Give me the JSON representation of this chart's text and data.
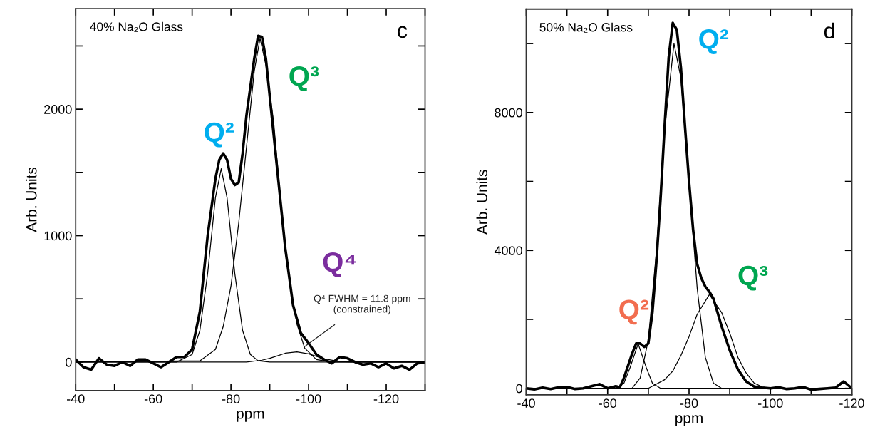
{
  "chart_data": [
    {
      "type": "line",
      "title": "40% Na₂O Glass",
      "xlabel": "ppm",
      "ylabel": "Arb. Units",
      "xlim": [
        -40,
        -130
      ],
      "ylim": [
        -225,
        2795
      ],
      "xticks": [
        -40,
        {
          "value": -50,
          "label": null
        },
        -60,
        {
          "value": -70,
          "label": null
        },
        -80,
        {
          "value": -90,
          "label": null
        },
        -100,
        {
          "value": -110,
          "label": null
        },
        -120,
        {
          "value": -130,
          "label": null
        }
      ],
      "yticks": [
        0,
        {
          "value": 500,
          "label": null
        },
        1000,
        {
          "value": 1500,
          "label": null
        },
        2000,
        {
          "value": 2500,
          "label": null
        }
      ],
      "grid": false,
      "legend": false,
      "marker": "none",
      "series": [
        {
          "color": "#000000",
          "x": [
            -40,
            -42,
            -44,
            -46,
            -48,
            -50,
            -52,
            -54,
            -56,
            -58,
            -60,
            -62,
            -64,
            -66,
            -68,
            -70,
            -72,
            -74,
            -76,
            -77,
            -78,
            -79,
            -80,
            -81,
            -82,
            -83,
            -84,
            -86,
            -87,
            -88,
            -89,
            -90,
            -92,
            -94,
            -96,
            -98,
            -100,
            -102,
            -104,
            -106,
            -108,
            -110,
            -112,
            -114,
            -116,
            -118,
            -120,
            -122,
            -124,
            -126,
            -128,
            -130
          ],
          "values": [
            20,
            -40,
            -60,
            30,
            -20,
            -30,
            0,
            -30,
            20,
            20,
            -10,
            -40,
            0,
            40,
            40,
            100,
            400,
            1000,
            1450,
            1600,
            1650,
            1600,
            1450,
            1400,
            1420,
            1650,
            1950,
            2400,
            2580,
            2570,
            2400,
            2100,
            1500,
            900,
            450,
            230,
            150,
            60,
            20,
            -10,
            40,
            30,
            0,
            -20,
            -10,
            -40,
            -10,
            -50,
            -30,
            -60,
            -10,
            0
          ]
        },
        {
          "color": "#000000",
          "x": [
            -40,
            -66,
            -70,
            -72,
            -74,
            -76,
            -77.5,
            -79,
            -81,
            -83,
            -85,
            -87,
            -90,
            -130
          ],
          "values": [
            0,
            0,
            60,
            250,
            700,
            1300,
            1530,
            1300,
            700,
            250,
            60,
            10,
            0,
            0
          ]
        },
        {
          "color": "#000000",
          "x": [
            -40,
            -72,
            -76,
            -78,
            -80,
            -82,
            -84,
            -86,
            -87.5,
            -89,
            -91,
            -93,
            -95,
            -97,
            -99,
            -102,
            -106,
            -130
          ],
          "values": [
            0,
            10,
            100,
            280,
            600,
            1100,
            1700,
            2300,
            2560,
            2350,
            1900,
            1200,
            650,
            300,
            110,
            20,
            0,
            0
          ]
        },
        {
          "color": "#000000",
          "x": [
            -40,
            -84,
            -88,
            -90,
            -92,
            -94,
            -97,
            -100,
            -102,
            -104,
            -108,
            -112,
            -130
          ],
          "values": [
            0,
            0,
            15,
            30,
            50,
            70,
            80,
            65,
            45,
            25,
            5,
            0,
            0
          ]
        }
      ],
      "annotations": [
        "c",
        "Q²",
        "Q³",
        "Q⁴",
        {
          "text": "Q⁴ FWHM = 11.8 ppm\n(constrained)",
          "x": -98.5,
          "y": 111
        }
      ]
    },
    {
      "type": "line",
      "title": "50% Na₂O Glass",
      "xlabel": "ppm",
      "ylabel": "Arb. Units",
      "xlim": [
        -40,
        -120
      ],
      "ylim": [
        -190,
        11000
      ],
      "xticks": [
        -40,
        {
          "value": -50,
          "label": null
        },
        -60,
        {
          "value": -70,
          "label": null
        },
        -80,
        {
          "value": -90,
          "label": null
        },
        -100,
        {
          "value": -110,
          "label": null
        },
        -120
      ],
      "yticks": [
        0,
        {
          "value": 2000,
          "label": null
        },
        4000,
        {
          "value": 6000,
          "label": null
        },
        8000,
        {
          "value": 10000,
          "label": null
        }
      ],
      "grid": false,
      "legend": false,
      "marker": "none",
      "series": [
        {
          "color": "#000000",
          "x": [
            -40,
            -42,
            -44,
            -46,
            -48,
            -50,
            -52,
            -54,
            -56,
            -58,
            -60,
            -62,
            -63,
            -64,
            -66,
            -67,
            -68,
            -69,
            -70,
            -71,
            -72,
            -73,
            -74,
            -75,
            -76,
            -77,
            -78,
            -79,
            -80,
            -81,
            -82,
            -83,
            -84,
            -85,
            -86,
            -87,
            -88,
            -90,
            -92,
            -94,
            -96,
            -98,
            -100,
            -102,
            -104,
            -106,
            -108,
            -110,
            -112,
            -114,
            -116,
            -118,
            -120
          ],
          "values": [
            0,
            -30,
            20,
            -20,
            30,
            40,
            -20,
            0,
            60,
            120,
            0,
            60,
            30,
            300,
            1000,
            1300,
            1300,
            1200,
            1300,
            2200,
            3700,
            5500,
            7600,
            9600,
            10600,
            10400,
            9300,
            7600,
            6000,
            4600,
            3600,
            3200,
            2950,
            2800,
            2600,
            2200,
            1800,
            1100,
            550,
            200,
            50,
            20,
            0,
            30,
            -20,
            0,
            40,
            -40,
            -20,
            0,
            20,
            200,
            0
          ]
        },
        {
          "color": "#000000",
          "x": [
            -40,
            -62,
            -64,
            -65.5,
            -67.5,
            -69.5,
            -71,
            -73,
            -120
          ],
          "values": [
            0,
            0,
            150,
            600,
            1290,
            600,
            150,
            0,
            0
          ]
        },
        {
          "color": "#000000",
          "x": [
            -40,
            -66,
            -68,
            -70,
            -72,
            -74,
            -76.3,
            -78,
            -80,
            -82,
            -84,
            -86,
            -88,
            -120
          ],
          "values": [
            0,
            0,
            300,
            1400,
            4000,
            7500,
            10000,
            9000,
            6000,
            2900,
            900,
            150,
            0,
            0
          ]
        },
        {
          "color": "#000000",
          "x": [
            -40,
            -70,
            -74,
            -76,
            -78,
            -80,
            -82,
            -85,
            -88,
            -90,
            -92,
            -94,
            -96,
            -98,
            -100,
            -120
          ],
          "values": [
            0,
            0,
            250,
            500,
            950,
            1500,
            2150,
            2720,
            2200,
            1600,
            900,
            450,
            150,
            40,
            0,
            0
          ]
        }
      ],
      "annotations": [
        "d",
        "Q²",
        "Q²",
        "Q³"
      ]
    }
  ]
}
